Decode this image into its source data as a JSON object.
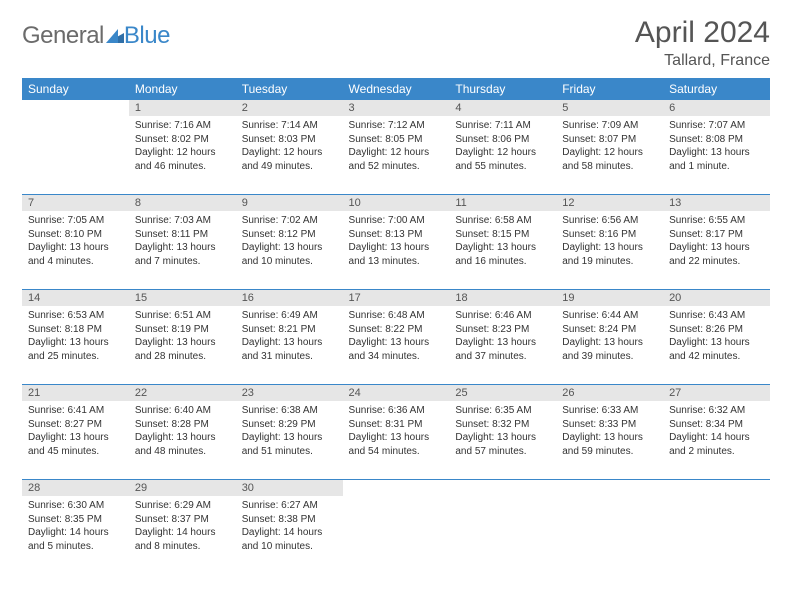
{
  "logo": {
    "part1": "General",
    "part2": "Blue"
  },
  "title": "April 2024",
  "location": "Tallard, France",
  "colors": {
    "header_bg": "#3a87c9",
    "header_fg": "#ffffff",
    "daynum_bg": "#e6e6e6",
    "row_border": "#3a87c9",
    "text": "#333333",
    "title_text": "#555555"
  },
  "typography": {
    "title_size_pt": 30,
    "location_size_pt": 16,
    "weekday_size_pt": 12,
    "body_size_pt": 10
  },
  "weekdays": [
    "Sunday",
    "Monday",
    "Tuesday",
    "Wednesday",
    "Thursday",
    "Friday",
    "Saturday"
  ],
  "weeks": [
    [
      {
        "day": "",
        "sunrise": "",
        "sunset": "",
        "daylight1": "",
        "daylight2": ""
      },
      {
        "day": "1",
        "sunrise": "Sunrise: 7:16 AM",
        "sunset": "Sunset: 8:02 PM",
        "daylight1": "Daylight: 12 hours",
        "daylight2": "and 46 minutes."
      },
      {
        "day": "2",
        "sunrise": "Sunrise: 7:14 AM",
        "sunset": "Sunset: 8:03 PM",
        "daylight1": "Daylight: 12 hours",
        "daylight2": "and 49 minutes."
      },
      {
        "day": "3",
        "sunrise": "Sunrise: 7:12 AM",
        "sunset": "Sunset: 8:05 PM",
        "daylight1": "Daylight: 12 hours",
        "daylight2": "and 52 minutes."
      },
      {
        "day": "4",
        "sunrise": "Sunrise: 7:11 AM",
        "sunset": "Sunset: 8:06 PM",
        "daylight1": "Daylight: 12 hours",
        "daylight2": "and 55 minutes."
      },
      {
        "day": "5",
        "sunrise": "Sunrise: 7:09 AM",
        "sunset": "Sunset: 8:07 PM",
        "daylight1": "Daylight: 12 hours",
        "daylight2": "and 58 minutes."
      },
      {
        "day": "6",
        "sunrise": "Sunrise: 7:07 AM",
        "sunset": "Sunset: 8:08 PM",
        "daylight1": "Daylight: 13 hours",
        "daylight2": "and 1 minute."
      }
    ],
    [
      {
        "day": "7",
        "sunrise": "Sunrise: 7:05 AM",
        "sunset": "Sunset: 8:10 PM",
        "daylight1": "Daylight: 13 hours",
        "daylight2": "and 4 minutes."
      },
      {
        "day": "8",
        "sunrise": "Sunrise: 7:03 AM",
        "sunset": "Sunset: 8:11 PM",
        "daylight1": "Daylight: 13 hours",
        "daylight2": "and 7 minutes."
      },
      {
        "day": "9",
        "sunrise": "Sunrise: 7:02 AM",
        "sunset": "Sunset: 8:12 PM",
        "daylight1": "Daylight: 13 hours",
        "daylight2": "and 10 minutes."
      },
      {
        "day": "10",
        "sunrise": "Sunrise: 7:00 AM",
        "sunset": "Sunset: 8:13 PM",
        "daylight1": "Daylight: 13 hours",
        "daylight2": "and 13 minutes."
      },
      {
        "day": "11",
        "sunrise": "Sunrise: 6:58 AM",
        "sunset": "Sunset: 8:15 PM",
        "daylight1": "Daylight: 13 hours",
        "daylight2": "and 16 minutes."
      },
      {
        "day": "12",
        "sunrise": "Sunrise: 6:56 AM",
        "sunset": "Sunset: 8:16 PM",
        "daylight1": "Daylight: 13 hours",
        "daylight2": "and 19 minutes."
      },
      {
        "day": "13",
        "sunrise": "Sunrise: 6:55 AM",
        "sunset": "Sunset: 8:17 PM",
        "daylight1": "Daylight: 13 hours",
        "daylight2": "and 22 minutes."
      }
    ],
    [
      {
        "day": "14",
        "sunrise": "Sunrise: 6:53 AM",
        "sunset": "Sunset: 8:18 PM",
        "daylight1": "Daylight: 13 hours",
        "daylight2": "and 25 minutes."
      },
      {
        "day": "15",
        "sunrise": "Sunrise: 6:51 AM",
        "sunset": "Sunset: 8:19 PM",
        "daylight1": "Daylight: 13 hours",
        "daylight2": "and 28 minutes."
      },
      {
        "day": "16",
        "sunrise": "Sunrise: 6:49 AM",
        "sunset": "Sunset: 8:21 PM",
        "daylight1": "Daylight: 13 hours",
        "daylight2": "and 31 minutes."
      },
      {
        "day": "17",
        "sunrise": "Sunrise: 6:48 AM",
        "sunset": "Sunset: 8:22 PM",
        "daylight1": "Daylight: 13 hours",
        "daylight2": "and 34 minutes."
      },
      {
        "day": "18",
        "sunrise": "Sunrise: 6:46 AM",
        "sunset": "Sunset: 8:23 PM",
        "daylight1": "Daylight: 13 hours",
        "daylight2": "and 37 minutes."
      },
      {
        "day": "19",
        "sunrise": "Sunrise: 6:44 AM",
        "sunset": "Sunset: 8:24 PM",
        "daylight1": "Daylight: 13 hours",
        "daylight2": "and 39 minutes."
      },
      {
        "day": "20",
        "sunrise": "Sunrise: 6:43 AM",
        "sunset": "Sunset: 8:26 PM",
        "daylight1": "Daylight: 13 hours",
        "daylight2": "and 42 minutes."
      }
    ],
    [
      {
        "day": "21",
        "sunrise": "Sunrise: 6:41 AM",
        "sunset": "Sunset: 8:27 PM",
        "daylight1": "Daylight: 13 hours",
        "daylight2": "and 45 minutes."
      },
      {
        "day": "22",
        "sunrise": "Sunrise: 6:40 AM",
        "sunset": "Sunset: 8:28 PM",
        "daylight1": "Daylight: 13 hours",
        "daylight2": "and 48 minutes."
      },
      {
        "day": "23",
        "sunrise": "Sunrise: 6:38 AM",
        "sunset": "Sunset: 8:29 PM",
        "daylight1": "Daylight: 13 hours",
        "daylight2": "and 51 minutes."
      },
      {
        "day": "24",
        "sunrise": "Sunrise: 6:36 AM",
        "sunset": "Sunset: 8:31 PM",
        "daylight1": "Daylight: 13 hours",
        "daylight2": "and 54 minutes."
      },
      {
        "day": "25",
        "sunrise": "Sunrise: 6:35 AM",
        "sunset": "Sunset: 8:32 PM",
        "daylight1": "Daylight: 13 hours",
        "daylight2": "and 57 minutes."
      },
      {
        "day": "26",
        "sunrise": "Sunrise: 6:33 AM",
        "sunset": "Sunset: 8:33 PM",
        "daylight1": "Daylight: 13 hours",
        "daylight2": "and 59 minutes."
      },
      {
        "day": "27",
        "sunrise": "Sunrise: 6:32 AM",
        "sunset": "Sunset: 8:34 PM",
        "daylight1": "Daylight: 14 hours",
        "daylight2": "and 2 minutes."
      }
    ],
    [
      {
        "day": "28",
        "sunrise": "Sunrise: 6:30 AM",
        "sunset": "Sunset: 8:35 PM",
        "daylight1": "Daylight: 14 hours",
        "daylight2": "and 5 minutes."
      },
      {
        "day": "29",
        "sunrise": "Sunrise: 6:29 AM",
        "sunset": "Sunset: 8:37 PM",
        "daylight1": "Daylight: 14 hours",
        "daylight2": "and 8 minutes."
      },
      {
        "day": "30",
        "sunrise": "Sunrise: 6:27 AM",
        "sunset": "Sunset: 8:38 PM",
        "daylight1": "Daylight: 14 hours",
        "daylight2": "and 10 minutes."
      },
      {
        "day": "",
        "sunrise": "",
        "sunset": "",
        "daylight1": "",
        "daylight2": ""
      },
      {
        "day": "",
        "sunrise": "",
        "sunset": "",
        "daylight1": "",
        "daylight2": ""
      },
      {
        "day": "",
        "sunrise": "",
        "sunset": "",
        "daylight1": "",
        "daylight2": ""
      },
      {
        "day": "",
        "sunrise": "",
        "sunset": "",
        "daylight1": "",
        "daylight2": ""
      }
    ]
  ]
}
